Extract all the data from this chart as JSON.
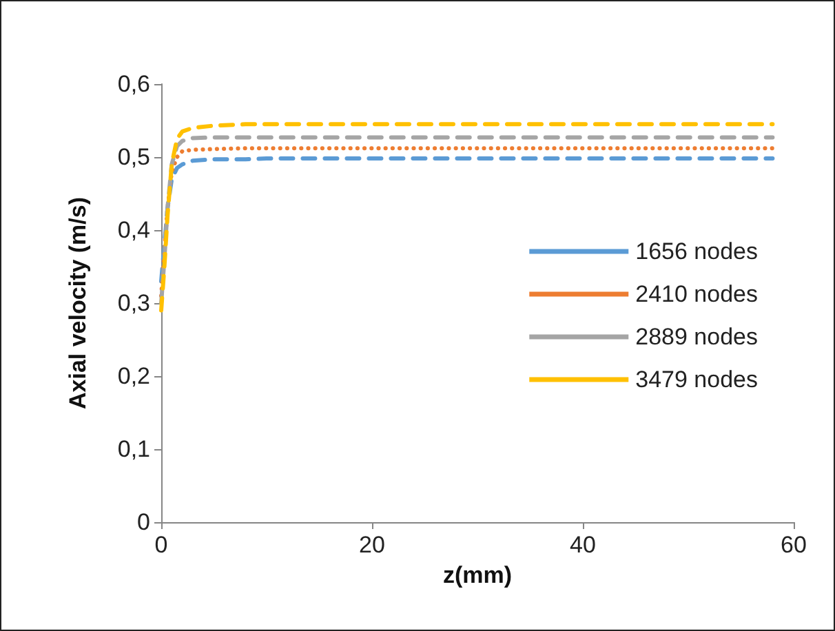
{
  "chart_data": {
    "type": "line",
    "xlabel": "z(mm)",
    "ylabel": "Axial velocity (m/s)",
    "x": [
      0,
      0.3,
      0.6,
      1,
      1.5,
      2,
      3,
      5,
      8,
      10,
      20,
      30,
      40,
      50,
      58
    ],
    "series": [
      {
        "name": "1656 nodes",
        "color": "#5b9bd5",
        "line_style": "dashed",
        "values": [
          0.33,
          0.38,
          0.43,
          0.47,
          0.485,
          0.49,
          0.495,
          0.497,
          0.497,
          0.498,
          0.498,
          0.498,
          0.498,
          0.498,
          0.498
        ]
      },
      {
        "name": "2410 nodes",
        "color": "#ed7d31",
        "line_style": "dotted",
        "values": [
          0.31,
          0.37,
          0.43,
          0.48,
          0.5,
          0.508,
          0.51,
          0.511,
          0.512,
          0.512,
          0.512,
          0.512,
          0.512,
          0.512,
          0.512
        ]
      },
      {
        "name": "2889 nodes",
        "color": "#a5a5a5",
        "line_style": "dashed",
        "values": [
          0.3,
          0.36,
          0.43,
          0.49,
          0.515,
          0.522,
          0.526,
          0.527,
          0.527,
          0.527,
          0.527,
          0.527,
          0.527,
          0.527,
          0.527
        ]
      },
      {
        "name": "3479 nodes",
        "color": "#ffc000",
        "line_style": "dashed",
        "values": [
          0.29,
          0.35,
          0.42,
          0.49,
          0.525,
          0.535,
          0.54,
          0.543,
          0.545,
          0.545,
          0.545,
          0.545,
          0.545,
          0.545,
          0.545
        ]
      }
    ],
    "xlim": [
      0,
      60
    ],
    "xticks": [
      0,
      20,
      40,
      60
    ],
    "ylim": [
      0,
      0.6
    ],
    "yticks": [
      0,
      {
        "value": 0.1,
        "label": "0,1"
      },
      {
        "value": 0.2,
        "label": "0,2"
      },
      {
        "value": 0.3,
        "label": "0,3"
      },
      {
        "value": 0.4,
        "label": "0,4"
      },
      {
        "value": 0.5,
        "label": "0,5"
      },
      {
        "value": 0.6,
        "label": "0,6"
      }
    ],
    "grid": false,
    "legend": "right",
    "marker": "none"
  }
}
